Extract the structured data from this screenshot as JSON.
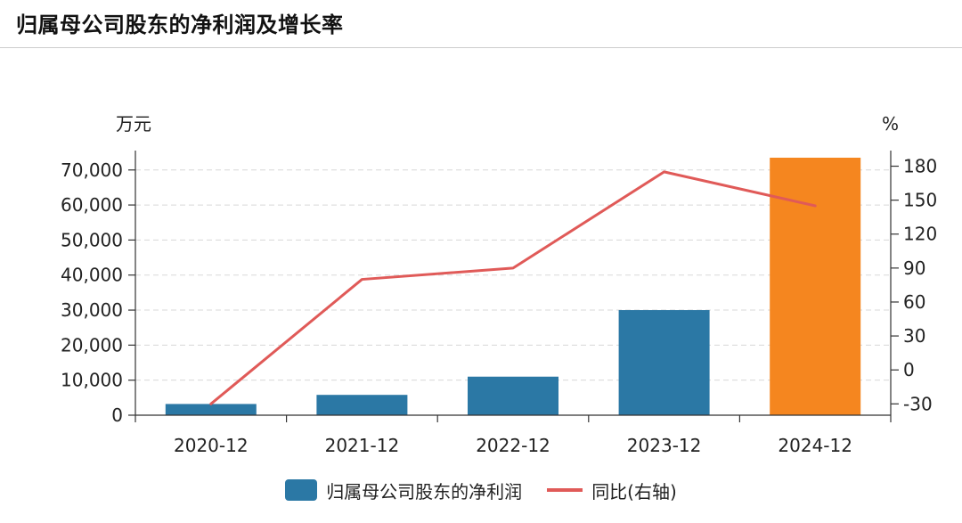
{
  "title": "归属母公司股东的净利润及增长率",
  "chart_data": {
    "type": "bar",
    "categories": [
      "2020-12",
      "2021-12",
      "2022-12",
      "2023-12",
      "2024-12"
    ],
    "series": [
      {
        "name": "归属母公司股东的净利润",
        "type": "bar",
        "axis": "left",
        "values": [
          3200,
          5800,
          11000,
          30000,
          73500
        ],
        "colors": [
          "#2b78a5",
          "#2b78a5",
          "#2b78a5",
          "#2b78a5",
          "#f5861f"
        ]
      },
      {
        "name": "同比(右轴)",
        "type": "line",
        "axis": "right",
        "values": [
          -30,
          80,
          90,
          175,
          145
        ],
        "color": "#e05a58"
      }
    ],
    "y_left": {
      "label": "万元",
      "ylim": [
        0,
        73500
      ],
      "ticks": [
        0,
        10000,
        20000,
        30000,
        40000,
        50000,
        60000,
        70000
      ],
      "tick_labels": [
        "0",
        "10,000",
        "20,000",
        "30,000",
        "40,000",
        "50,000",
        "60,000",
        "70,000"
      ]
    },
    "y_right": {
      "label": "%",
      "ylim": [
        -40,
        187.5
      ],
      "ticks": [
        -30,
        0,
        30,
        60,
        90,
        120,
        150,
        180
      ],
      "tick_labels": [
        "-30",
        "0",
        "30",
        "60",
        "90",
        "120",
        "150",
        "180"
      ]
    },
    "grid": true,
    "legend": "bottom"
  }
}
